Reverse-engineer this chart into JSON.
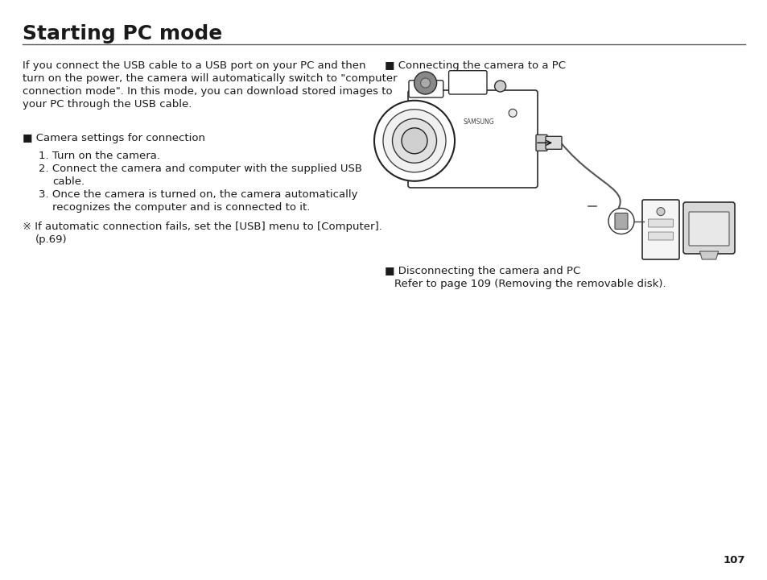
{
  "title": "Starting PC mode",
  "title_fontsize": 18,
  "bg_color": "#ffffff",
  "text_color": "#1a1a1a",
  "line_color": "#333333",
  "page_number": "107",
  "intro_text": "If you connect the USB cable to a USB port on your PC and then\nturn on the power, the camera will automatically switch to \"computer\nconnection mode\". In this mode, you can download stored images to\nyour PC through the USB cable.",
  "section1_header": "■ Camera settings for connection",
  "step1": "1. Turn on the camera.",
  "step2": "2. Connect the camera and computer with the supplied USB\n    cable.",
  "step3": "3. Once the camera is turned on, the camera automatically\n    recognizes the computer and is connected to it.",
  "note_text": "※ If automatic connection fails, set the [USB] menu to [Computer].\n    (p.69)",
  "right_header1": "■ Connecting the camera to a PC",
  "right_header2": "■ Disconnecting the camera and PC",
  "right_body2": "Refer to page 109 (Removing the removable disk).",
  "body_fontsize": 9.5,
  "header_fontsize": 9.5
}
